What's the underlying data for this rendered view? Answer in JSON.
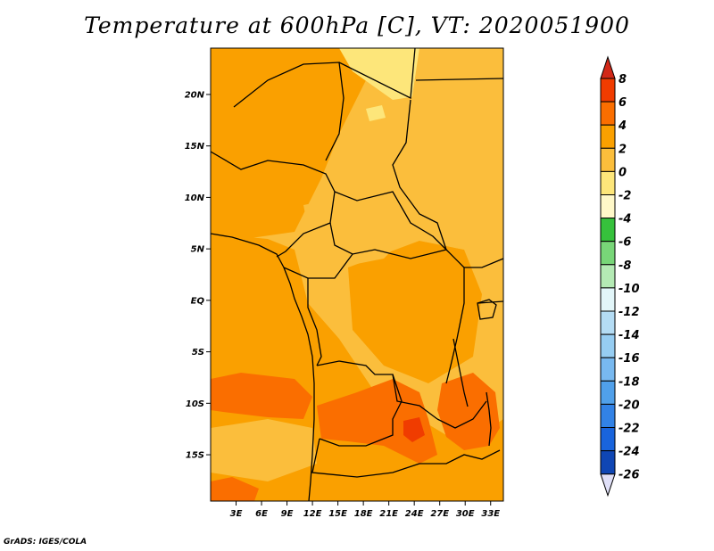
{
  "title": "Temperature at 600hPa [C], VT: 2020051900",
  "credit": "GrADS: IGES/COLA",
  "lat_ticks": [
    {
      "label": "20N",
      "value": 20
    },
    {
      "label": "15N",
      "value": 15
    },
    {
      "label": "10N",
      "value": 10
    },
    {
      "label": "5N",
      "value": 5
    },
    {
      "label": "EQ",
      "value": 0
    },
    {
      "label": "5S",
      "value": -5
    },
    {
      "label": "10S",
      "value": -10
    },
    {
      "label": "15S",
      "value": -15
    }
  ],
  "lon_ticks": [
    {
      "label": "3E",
      "value": 3
    },
    {
      "label": "6E",
      "value": 6
    },
    {
      "label": "9E",
      "value": 9
    },
    {
      "label": "12E",
      "value": 12
    },
    {
      "label": "15E",
      "value": 15
    },
    {
      "label": "18E",
      "value": 18
    },
    {
      "label": "21E",
      "value": 21
    },
    {
      "label": "24E",
      "value": 24
    },
    {
      "label": "27E",
      "value": 27
    },
    {
      "label": "30E",
      "value": 30
    },
    {
      "label": "33E",
      "value": 33
    }
  ],
  "colorbar": {
    "levels": [
      "8",
      "6",
      "4",
      "2",
      "0",
      "-2",
      "-4",
      "-6",
      "-8",
      "-10",
      "-12",
      "-14",
      "-16",
      "-18",
      "-20",
      "-22",
      "-24",
      "-26"
    ],
    "colors": [
      "#f03c00",
      "#fa6e00",
      "#faa000",
      "#fbbe3c",
      "#fde67a",
      "#fff8c8",
      "#36c13c",
      "#78d678",
      "#b4eab4",
      "#e2f6f9",
      "#b4dcf4",
      "#96cdf2",
      "#78b9f0",
      "#50a0ea",
      "#3282e6",
      "#1964dc",
      "#0f46b4",
      "#0a1464",
      "#e0e0f8"
    ],
    "top_cap_color": "#d22818",
    "bottom_cap_color": "#e0e0f8"
  },
  "map": {
    "lon_range": [
      0,
      34.5
    ],
    "lat_range": [
      -19.5,
      24.5
    ],
    "colors": {
      "base": "#fbbe3c",
      "light": "#fde67a",
      "warm": "#faa000",
      "hot": "#fa6e00",
      "hotspot": "#f03c00"
    }
  }
}
